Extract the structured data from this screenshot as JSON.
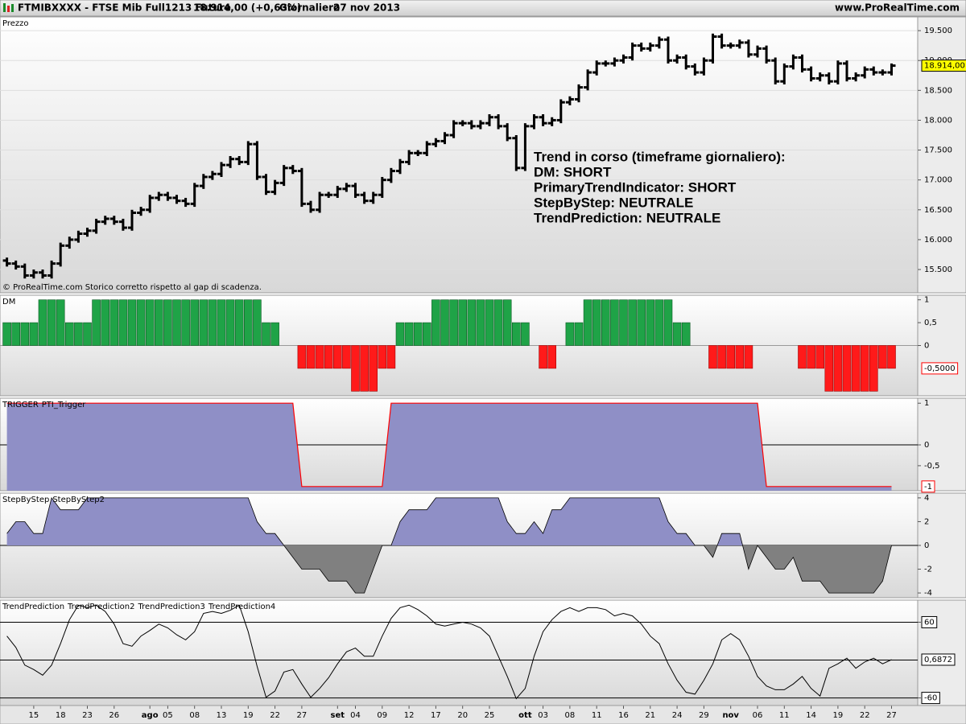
{
  "header": {
    "symbol": "FTMIBXXXX - FTSE Mib Full1213 Future",
    "last": "18.914,00 (+0,63%)",
    "timeframe": "Giornaliero",
    "date": "27 nov 2013",
    "site": "www.ProRealTime.com"
  },
  "chart_data": [
    {
      "type": "ohlc",
      "legend": [
        {
          "name": "Prezzo",
          "color": "#000000"
        }
      ],
      "color": "#000000",
      "categories": [
        null,
        null,
        null,
        "15",
        null,
        null,
        "18",
        null,
        null,
        "23",
        null,
        null,
        "26",
        null,
        null,
        null,
        "ago",
        null,
        "05",
        null,
        null,
        "08",
        null,
        null,
        "13",
        null,
        null,
        "19",
        null,
        null,
        "22",
        null,
        null,
        "27",
        null,
        null,
        null,
        "set",
        null,
        "04",
        null,
        null,
        "09",
        null,
        null,
        "12",
        null,
        null,
        "17",
        null,
        null,
        "20",
        null,
        null,
        "25",
        null,
        null,
        null,
        "ott",
        null,
        "03",
        null,
        null,
        "08",
        null,
        null,
        "11",
        null,
        null,
        "16",
        null,
        null,
        "21",
        null,
        null,
        "24",
        null,
        null,
        "29",
        null,
        null,
        "nov",
        null,
        null,
        "06",
        null,
        null,
        "11",
        null,
        null,
        "14",
        null,
        null,
        "19",
        null,
        null,
        "22",
        null,
        null,
        "27"
      ],
      "open": [
        15650,
        15600,
        15550,
        15400,
        15450,
        15400,
        15600,
        15900,
        16000,
        16100,
        16150,
        16300,
        16350,
        16300,
        16200,
        16450,
        16500,
        16700,
        16750,
        16700,
        16650,
        16600,
        16900,
        17050,
        17100,
        17250,
        17350,
        17300,
        17600,
        17050,
        16800,
        16950,
        17200,
        17150,
        16600,
        16500,
        16750,
        16750,
        16850,
        16900,
        16750,
        16650,
        16750,
        17000,
        17150,
        17300,
        17450,
        17450,
        17600,
        17650,
        17750,
        17950,
        17950,
        17900,
        17950,
        18050,
        17900,
        17700,
        17200,
        17900,
        18050,
        17950,
        18000,
        18300,
        18350,
        18550,
        18800,
        18950,
        18950,
        19000,
        19050,
        19250,
        19200,
        19250,
        19350,
        19000,
        19050,
        18900,
        18800,
        19000,
        19400,
        19250,
        19250,
        19300,
        19100,
        19200,
        19000,
        18650,
        18900,
        19050,
        18850,
        18700,
        18750,
        18650,
        18950,
        18700,
        18750,
        18850,
        18800,
        18800
      ],
      "high": [
        15700,
        15650,
        15600,
        15500,
        15500,
        15650,
        15950,
        16050,
        16150,
        16200,
        16350,
        16400,
        16400,
        16350,
        16500,
        16550,
        16750,
        16800,
        16800,
        16750,
        16700,
        16950,
        17100,
        17150,
        17300,
        17400,
        17400,
        17650,
        17650,
        17100,
        17000,
        17250,
        17250,
        17200,
        16650,
        16800,
        16800,
        16900,
        16950,
        16950,
        16800,
        16800,
        17050,
        17200,
        17350,
        17500,
        17500,
        17650,
        17700,
        17800,
        18000,
        18000,
        18000,
        18000,
        18100,
        18100,
        17950,
        17750,
        17950,
        18100,
        18100,
        18050,
        18350,
        18400,
        18600,
        18850,
        19000,
        19000,
        19050,
        19100,
        19300,
        19300,
        19300,
        19400,
        19400,
        19100,
        19100,
        18950,
        19050,
        19450,
        19450,
        19300,
        19350,
        19350,
        19250,
        19250,
        19050,
        18950,
        19100,
        19100,
        18900,
        18800,
        18800,
        19000,
        19000,
        18800,
        18900,
        18900,
        18850,
        18950
      ],
      "low": [
        15550,
        15500,
        15350,
        15350,
        15350,
        15350,
        15550,
        15850,
        15950,
        16050,
        16100,
        16250,
        16250,
        16150,
        16150,
        16400,
        16450,
        16650,
        16650,
        16600,
        16550,
        16550,
        16850,
        17000,
        17050,
        17200,
        17250,
        17250,
        17000,
        16750,
        16750,
        16900,
        17100,
        16550,
        16450,
        16450,
        16700,
        16700,
        16800,
        16700,
        16600,
        16600,
        16700,
        16950,
        17100,
        17250,
        17400,
        17400,
        17550,
        17600,
        17700,
        17900,
        17850,
        17850,
        17900,
        17850,
        17650,
        17150,
        17150,
        17850,
        17900,
        17900,
        17950,
        18250,
        18300,
        18500,
        18750,
        18900,
        18900,
        18950,
        19000,
        19150,
        19150,
        19200,
        18950,
        18950,
        18850,
        18750,
        18750,
        18950,
        19200,
        19200,
        19200,
        19050,
        19050,
        18950,
        18600,
        18600,
        18850,
        18800,
        18650,
        18650,
        18600,
        18600,
        18650,
        18650,
        18700,
        18750,
        18750,
        18750
      ],
      "close": [
        15600,
        15550,
        15400,
        15450,
        15400,
        15600,
        15900,
        16000,
        16100,
        16150,
        16300,
        16350,
        16300,
        16200,
        16450,
        16500,
        16700,
        16750,
        16700,
        16650,
        16600,
        16900,
        17050,
        17100,
        17250,
        17350,
        17300,
        17600,
        17050,
        16800,
        16950,
        17200,
        17150,
        16600,
        16500,
        16750,
        16750,
        16850,
        16900,
        16750,
        16650,
        16750,
        17000,
        17150,
        17300,
        17450,
        17450,
        17600,
        17650,
        17750,
        17950,
        17950,
        17900,
        17950,
        18050,
        17900,
        17700,
        17200,
        17900,
        18050,
        17950,
        18000,
        18300,
        18350,
        18550,
        18800,
        18950,
        18950,
        19000,
        19050,
        19250,
        19200,
        19250,
        19350,
        19000,
        19050,
        18900,
        18800,
        19000,
        19400,
        19250,
        19250,
        19300,
        19100,
        19200,
        19000,
        18650,
        18900,
        19050,
        18850,
        18700,
        18750,
        18650,
        18950,
        18700,
        18750,
        18850,
        18800,
        18800,
        18914
      ],
      "ylim": [
        15110,
        19730
      ],
      "yticks": [
        {
          "value": 15500,
          "label": "15.500"
        },
        {
          "value": 16000,
          "label": "16.000"
        },
        {
          "value": 16500,
          "label": "16.500"
        },
        {
          "value": 17000,
          "label": "17.000"
        },
        {
          "value": 17500,
          "label": "17.500"
        },
        {
          "value": 18000,
          "label": "18.000"
        },
        {
          "value": 18500,
          "label": "18.500"
        },
        {
          "value": 19000,
          "label": "19.000"
        },
        {
          "value": 19500,
          "label": "19.500"
        }
      ],
      "grid": true,
      "last_value": {
        "value": 18914,
        "label": "18.914,00",
        "fill": "#ffff00",
        "stroke": "#000000"
      },
      "annotation": [
        "Trend in corso (timeframe giornaliero):",
        "DM: SHORT",
        "PrimaryTrendIndicator: SHORT",
        "StepByStep: NEUTRALE",
        "TrendPrediction: NEUTRALE"
      ],
      "note": "© ProRealTime.com  Storico corretto rispetto al gap di scadenza."
    },
    {
      "type": "bar",
      "legend": [
        {
          "name": "DM",
          "color": "#ff0000"
        }
      ],
      "color_positive": "#1fa347",
      "color_negative": "#ff1a1a",
      "values": [
        0.5,
        0.5,
        0.5,
        0.5,
        1,
        1,
        1,
        0.5,
        0.5,
        0.5,
        1,
        1,
        1,
        1,
        1,
        1,
        1,
        1,
        1,
        1,
        1,
        1,
        1,
        1,
        1,
        1,
        1,
        1,
        1,
        0.5,
        0.5,
        0,
        0,
        -0.5,
        -0.5,
        -0.5,
        -0.5,
        -0.5,
        -0.5,
        -1,
        -1,
        -1,
        -0.5,
        -0.5,
        0.5,
        0.5,
        0.5,
        0.5,
        1,
        1,
        1,
        1,
        1,
        1,
        1,
        1,
        1,
        0.5,
        0.5,
        0,
        -0.5,
        -0.5,
        0,
        0.5,
        0.5,
        1,
        1,
        1,
        1,
        1,
        1,
        1,
        1,
        1,
        1,
        0.5,
        0.5,
        0,
        0,
        -0.5,
        -0.5,
        -0.5,
        -0.5,
        -0.5,
        0,
        0,
        0,
        0,
        0,
        -0.5,
        -0.5,
        -0.5,
        -1,
        -1,
        -1,
        -1,
        -1,
        -1,
        -0.5,
        -0.5
      ],
      "ylim": [
        -1.1,
        1.1
      ],
      "yticks": [
        1,
        {
          "value": 0.5,
          "label": "0,5"
        },
        0
      ],
      "levels": [
        0
      ],
      "level_color": "#999999",
      "last_value": {
        "value": -0.5,
        "label": "-0,5000",
        "fill": "#ffffff",
        "stroke": "#ff0000"
      }
    },
    {
      "type": "area",
      "legend": [
        {
          "name": "TRIGGER",
          "color": "#ff0000"
        },
        {
          "name": "PTI_Trigger",
          "color": "#000000"
        }
      ],
      "color": "#ff0000",
      "fill": "#8f8fc6",
      "values": [
        1,
        1,
        1,
        1,
        1,
        1,
        1,
        1,
        1,
        1,
        1,
        1,
        1,
        1,
        1,
        1,
        1,
        1,
        1,
        1,
        1,
        1,
        1,
        1,
        1,
        1,
        1,
        1,
        1,
        1,
        1,
        1,
        1,
        -1,
        -1,
        -1,
        -1,
        -1,
        -1,
        -1,
        -1,
        -1,
        -1,
        1,
        1,
        1,
        1,
        1,
        1,
        1,
        1,
        1,
        1,
        1,
        1,
        1,
        1,
        1,
        1,
        1,
        1,
        1,
        1,
        1,
        1,
        1,
        1,
        1,
        1,
        1,
        1,
        1,
        1,
        1,
        1,
        1,
        1,
        1,
        1,
        1,
        1,
        1,
        1,
        1,
        1,
        -1,
        -1,
        -1,
        -1,
        -1,
        -1,
        -1,
        -1,
        -1,
        -1,
        -1,
        -1,
        -1,
        -1,
        -1
      ],
      "ylim": [
        -1.1,
        1.12
      ],
      "yticks": [
        1,
        0,
        {
          "value": -0.5,
          "label": "-0,5"
        }
      ],
      "levels": [
        0
      ],
      "level_color": "#000000",
      "last_value": {
        "value": -1,
        "label": "-1",
        "fill": "#ffffff",
        "stroke": "#ff0000"
      }
    },
    {
      "type": "signed_area",
      "legend": [
        {
          "name": "StepByStep",
          "color": "#000000"
        },
        {
          "name": "StepByStep2",
          "color": "#000000"
        }
      ],
      "color": "#000000",
      "fill_positive": "#8f8fc6",
      "fill_negative": "#808080",
      "values": [
        1,
        2,
        2,
        1,
        1,
        4,
        3,
        3,
        3,
        4,
        4,
        4,
        4,
        4,
        4,
        4,
        4,
        4,
        4,
        4,
        4,
        4,
        4,
        4,
        4,
        4,
        4,
        4,
        2,
        1,
        1,
        0,
        -1,
        -2,
        -2,
        -2,
        -3,
        -3,
        -3,
        -4,
        -4,
        -2,
        0,
        0,
        2,
        3,
        3,
        3,
        4,
        4,
        4,
        4,
        4,
        4,
        4,
        4,
        2,
        1,
        1,
        2,
        1,
        3,
        3,
        4,
        4,
        4,
        4,
        4,
        4,
        4,
        4,
        4,
        4,
        4,
        2,
        1,
        1,
        0,
        0,
        -1,
        1,
        1,
        1,
        -2,
        0,
        -1,
        -2,
        -2,
        -1,
        -3,
        -3,
        -3,
        -4,
        -4,
        -4,
        -4,
        -4,
        -4,
        -3,
        0
      ],
      "ylim": [
        -4.4,
        4.4
      ],
      "yticks": [
        4,
        2,
        0,
        -2,
        -4
      ],
      "levels": [
        0
      ],
      "level_color": "#000000"
    },
    {
      "type": "line",
      "legend": [
        {
          "name": "TrendPrediction",
          "color": "#000000"
        },
        {
          "name": "TrendPrediction2",
          "color": "#000000"
        },
        {
          "name": "TrendPrediction3",
          "color": "#000000"
        },
        {
          "name": "TrendPrediction4",
          "color": "#000000"
        }
      ],
      "color": "#000000",
      "values": [
        38,
        20,
        -8,
        -15,
        -24,
        -8,
        26,
        64,
        87,
        83,
        87,
        77,
        57,
        26,
        22,
        38,
        47,
        57,
        51,
        40,
        32,
        45,
        74,
        77,
        74,
        79,
        87,
        45,
        -10,
        -59,
        -49,
        -19,
        -15,
        -38,
        -59,
        -45,
        -28,
        -6,
        13,
        19,
        6,
        6,
        38,
        66,
        83,
        87,
        80,
        70,
        57,
        54,
        57,
        60,
        57,
        51,
        38,
        6,
        -26,
        -61,
        -45,
        6,
        45,
        64,
        77,
        83,
        77,
        83,
        83,
        80,
        70,
        74,
        70,
        57,
        38,
        26,
        -6,
        -32,
        -51,
        -54,
        -32,
        -6,
        32,
        42,
        32,
        6,
        -26,
        -41,
        -47,
        -47,
        -38,
        -26,
        -45,
        -57,
        -13,
        -6,
        3,
        -13,
        -3,
        3,
        -6,
        0.6872
      ],
      "ylim": [
        -72,
        95
      ],
      "yticks": [
        60,
        -60
      ],
      "levels": [
        60,
        0,
        -60
      ],
      "level_color": "#000000",
      "last_value": {
        "value": 0.6872,
        "label": "0,6872",
        "fill": "#ffffff",
        "stroke": "#000000"
      }
    }
  ]
}
